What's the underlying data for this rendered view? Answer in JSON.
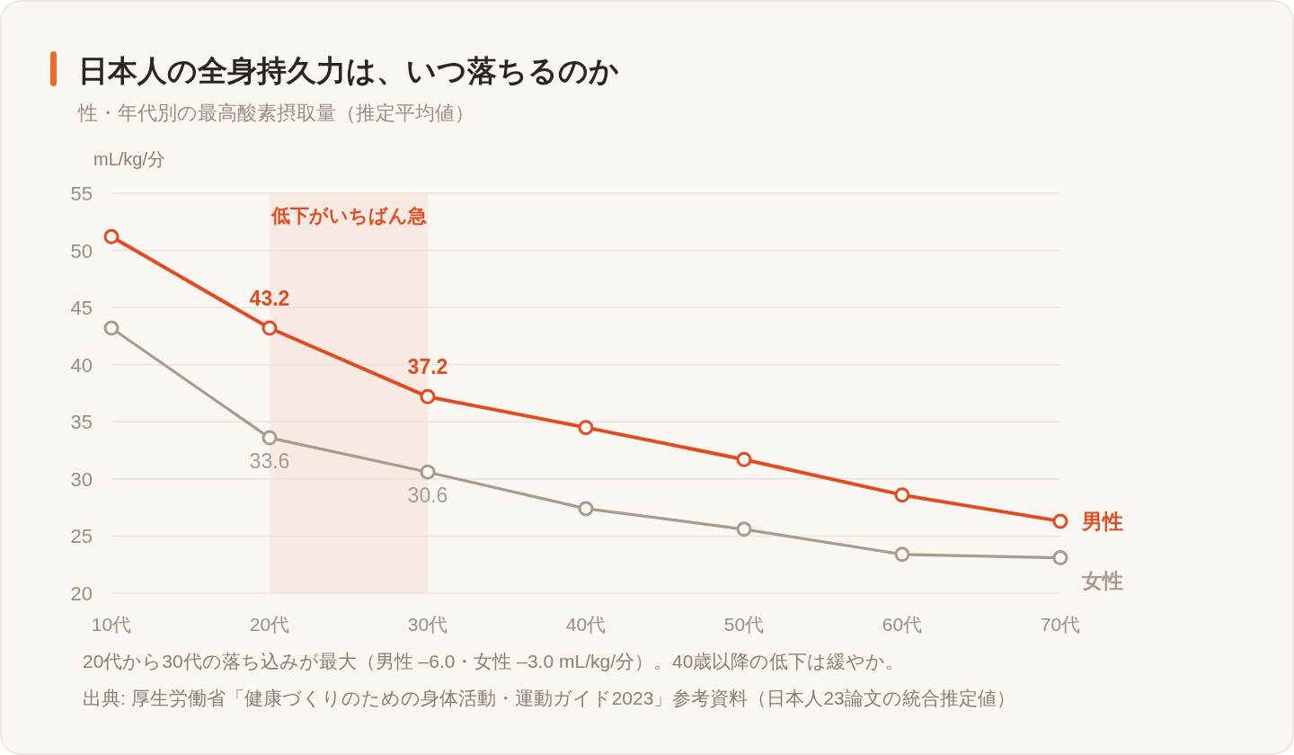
{
  "chart_data": {
    "type": "line",
    "title": "日本人の全身持久力は、いつ落ちるのか",
    "subtitle": "性・年代別の最高酸素摂取量（推定平均値）",
    "ylabel": "mL/kg/分",
    "categories": [
      "10代",
      "20代",
      "30代",
      "40代",
      "50代",
      "60代",
      "70代"
    ],
    "series": [
      {
        "name": "男性",
        "color": "#e04b20",
        "values": [
          51.2,
          43.2,
          37.2,
          34.5,
          31.7,
          28.6,
          26.3
        ],
        "value_labels": [
          null,
          "43.2",
          "37.2",
          null,
          null,
          null,
          null
        ]
      },
      {
        "name": "女性",
        "color": "#a89b8f",
        "values": [
          43.2,
          33.6,
          30.6,
          27.4,
          25.6,
          23.4,
          23.1
        ],
        "value_labels": [
          null,
          "33.6",
          "30.6",
          null,
          null,
          null,
          null
        ]
      }
    ],
    "ylim": [
      20,
      55
    ],
    "yticks": [
      20,
      25,
      30,
      35,
      40,
      45,
      50,
      55
    ],
    "grid": "y",
    "marker": "circle",
    "line_style": "solid",
    "bands": [
      {
        "axis": "x",
        "from": "20代",
        "to": "30代",
        "label": "低下がいちばん急",
        "color": "#f8e9e3"
      }
    ],
    "annotations": [
      "20代から30代の落ち込みが最大（男性 –6.0・女性 –3.0 mL/kg/分）。40歳以降の低下は緩やか。",
      "出典: 厚生労働省「健康づくりのための身体活動・運動ガイド2023」参考資料（日本人23論文の統合推定値）"
    ]
  }
}
